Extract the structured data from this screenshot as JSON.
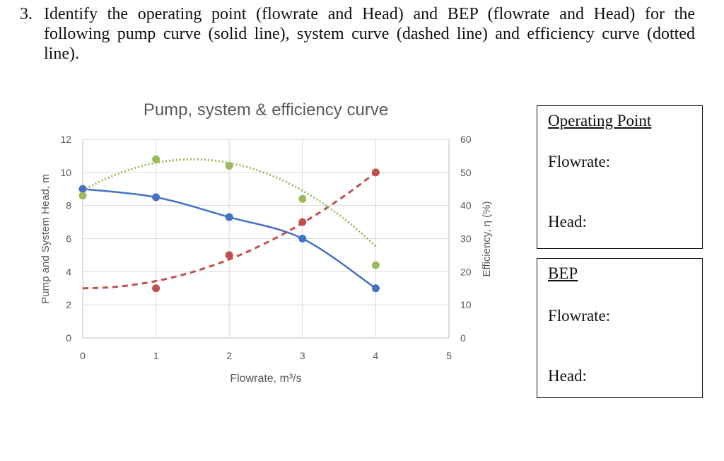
{
  "question": {
    "number": "3.",
    "line1": "Identify the operating point (flowrate and Head) and BEP (flowrate and Head) for the",
    "line2": "following pump curve (solid line), system curve (dashed line) and efficiency curve (dotted",
    "line3": "line)."
  },
  "chart_data": {
    "type": "line",
    "title": "Pump, system & efficiency curve",
    "xlabel": "Flowrate, m³/s",
    "ylabel": "Pump and System Head, m",
    "y2label": "Efficiency, η (%)",
    "xlim": [
      0,
      5
    ],
    "ylim": [
      0,
      12
    ],
    "y2lim": [
      0,
      60
    ],
    "x_ticks": [
      "0",
      "1",
      "2",
      "3",
      "4",
      "5"
    ],
    "y_ticks": [
      "0",
      "2",
      "4",
      "6",
      "8",
      "10",
      "12"
    ],
    "y2_ticks": [
      "0",
      "10",
      "20",
      "30",
      "40",
      "50",
      "60"
    ],
    "grid": true,
    "series": [
      {
        "style": "solid",
        "color": "#4472C4",
        "axis": "left",
        "points": [
          [
            0,
            9
          ],
          [
            1,
            8.5
          ],
          [
            2,
            7.3
          ],
          [
            3,
            6
          ],
          [
            4,
            3
          ]
        ]
      },
      {
        "style": "dashed",
        "color": "#C0504D",
        "axis": "left",
        "points": [
          [
            1,
            3
          ],
          [
            2,
            5
          ],
          [
            3,
            7
          ],
          [
            4,
            10
          ]
        ]
      },
      {
        "style": "dotted",
        "color": "#9BBB59",
        "axis": "right",
        "points": [
          [
            0,
            43
          ],
          [
            1,
            54
          ],
          [
            2,
            52
          ],
          [
            3,
            42
          ],
          [
            4,
            22
          ]
        ]
      }
    ]
  },
  "boxes": {
    "operating": {
      "title": "Operating Point",
      "flowrate": "Flowrate:",
      "head": "Head:"
    },
    "bep": {
      "title": "BEP",
      "flowrate": "Flowrate:",
      "head": "Head:"
    }
  }
}
